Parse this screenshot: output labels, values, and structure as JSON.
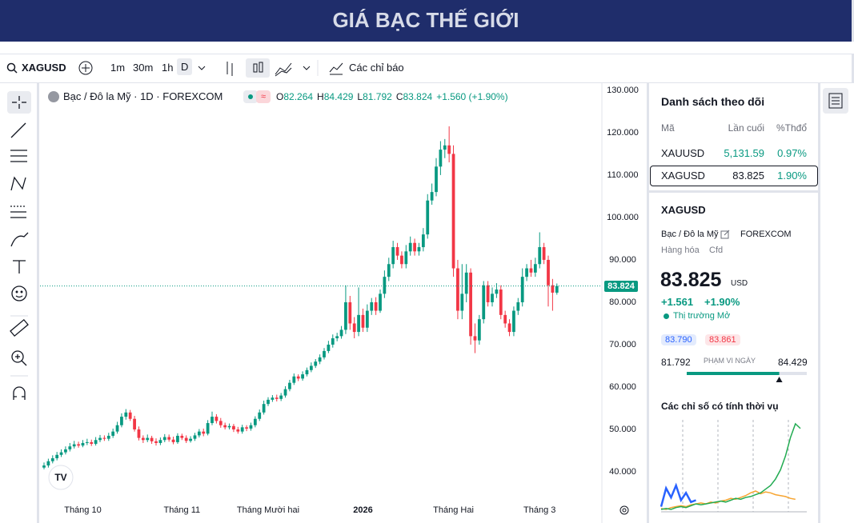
{
  "header": {
    "title": "GIÁ BẠC THẾ GIỚI"
  },
  "toolbar": {
    "symbol": "XAGUSD",
    "intervals": [
      "1m",
      "30m",
      "1h",
      "D"
    ],
    "indicators": "Các chỉ báo"
  },
  "chart_data": {
    "type": "candlestick",
    "legend": {
      "name": "Bạc / Đô la Mỹ · 1D · FOREXCOM",
      "labels": [
        "O",
        "H",
        "L",
        "C"
      ],
      "change": "+1.560 (+1.90%)"
    },
    "categories": [
      null,
      null,
      null,
      null,
      null,
      null,
      null,
      null,
      null,
      "Tháng 10",
      null,
      null,
      null,
      null,
      null,
      null,
      null,
      null,
      null,
      null,
      null,
      null,
      null,
      null,
      null,
      null,
      null,
      null,
      null,
      null,
      null,
      null,
      "Tháng 11",
      null,
      null,
      null,
      null,
      null,
      null,
      null,
      null,
      null,
      null,
      null,
      null,
      null,
      null,
      null,
      null,
      null,
      null,
      null,
      "Tháng Mười hai",
      null,
      null,
      null,
      null,
      null,
      null,
      null,
      null,
      null,
      null,
      null,
      null,
      null,
      null,
      null,
      null,
      null,
      null,
      null,
      null,
      null,
      "2026",
      null,
      null,
      null,
      null,
      null,
      null,
      null,
      null,
      null,
      null,
      null,
      null,
      null,
      null,
      null,
      null,
      null,
      null,
      null,
      null,
      "Tháng Hai",
      null,
      null,
      null,
      null,
      null,
      null,
      null,
      null,
      null,
      null,
      null,
      null,
      null,
      null,
      null,
      null,
      null,
      null,
      null,
      "Tháng 3",
      null,
      null,
      null,
      null
    ],
    "open": [
      41,
      41.5,
      42.5,
      43.2,
      44,
      44.6,
      45.3,
      46,
      46.5,
      46.2,
      46.8,
      47,
      46.6,
      47.5,
      48,
      47.8,
      48.5,
      49.5,
      51,
      53,
      54,
      52.5,
      50,
      48,
      47.5,
      48,
      47.2,
      46.8,
      47.5,
      48.2,
      47.6,
      47,
      48.5,
      48,
      47.3,
      47.8,
      48.6,
      49.5,
      49,
      51.5,
      53,
      52,
      51,
      50.5,
      50.8,
      50,
      49.5,
      50.5,
      50.2,
      51,
      52.5,
      54,
      56,
      57,
      57.5,
      57.2,
      58,
      59.5,
      61,
      62.5,
      62,
      63,
      64,
      65,
      66,
      67,
      68.5,
      70,
      71.5,
      72,
      73.5,
      80,
      75,
      73,
      77,
      74,
      78,
      80,
      78,
      82,
      86,
      89,
      93,
      91,
      89,
      92,
      94,
      92,
      93,
      96,
      104,
      106,
      112,
      116,
      117,
      115,
      88,
      78,
      82,
      87,
      72,
      71,
      76,
      84,
      80,
      82,
      83,
      77,
      75,
      73,
      78,
      80,
      86,
      88,
      87,
      89,
      93,
      90,
      84,
      82.264
    ],
    "high": [
      42.2,
      43.1,
      43.9,
      44.7,
      45.3,
      46,
      46.8,
      47.3,
      47.1,
      47.5,
      47.8,
      47.6,
      48.2,
      48.7,
      48.6,
      49.2,
      50.2,
      51.8,
      53.8,
      54.8,
      54.6,
      53.2,
      50.7,
      48.6,
      48.8,
      48.5,
      47.9,
      48.1,
      48.9,
      48.8,
      48.3,
      49.1,
      49,
      48.6,
      48.4,
      49.2,
      50.1,
      50.2,
      52.2,
      54.2,
      53.6,
      52.7,
      51.6,
      51.4,
      51.3,
      50.6,
      51.1,
      51,
      51.6,
      53.1,
      54.7,
      56.8,
      57.6,
      58.1,
      58.2,
      58.6,
      60.2,
      61.7,
      63.2,
      63,
      63.7,
      64.6,
      65.8,
      66.6,
      67.7,
      69.2,
      70.9,
      72.4,
      72.8,
      74.4,
      84,
      81.5,
      76.5,
      83.5,
      78.5,
      79.5,
      81,
      81.2,
      83,
      87.5,
      90.5,
      94.5,
      94,
      92,
      93.5,
      95.5,
      95,
      94,
      97.5,
      105.5,
      108,
      114,
      118,
      118.5,
      121.5,
      117,
      90,
      89,
      89,
      88,
      75,
      77,
      85,
      85,
      83.5,
      84.5,
      84,
      78,
      76,
      79,
      81,
      88,
      89,
      90,
      90.5,
      96.5,
      94,
      91,
      85.5,
      84.429
    ],
    "low": [
      40.6,
      41,
      42,
      42.7,
      43.5,
      44.1,
      44.8,
      45.5,
      45.7,
      45.8,
      46.3,
      46.1,
      46.2,
      47,
      47.3,
      47.3,
      48,
      49,
      50.5,
      52.3,
      52,
      49.5,
      47.4,
      46.8,
      47,
      46.6,
      46.2,
      46.3,
      47,
      47.1,
      46.5,
      46.6,
      47.5,
      46.8,
      46.9,
      47.3,
      48.1,
      48.4,
      48.6,
      51,
      51.4,
      50.4,
      50,
      50,
      49.4,
      49,
      49,
      49.6,
      49.7,
      50.5,
      52,
      53.5,
      55.5,
      56.5,
      56.6,
      56.7,
      57.5,
      59,
      60.5,
      61.4,
      61.5,
      62.5,
      63.5,
      64.5,
      65.4,
      66.5,
      68,
      69.3,
      70.8,
      71.4,
      72.5,
      73.5,
      71.5,
      72,
      73,
      73,
      77,
      77,
      77.5,
      81,
      85,
      88,
      90,
      88,
      88,
      91,
      91,
      91,
      92,
      95,
      103,
      105,
      110,
      114,
      113,
      86,
      76,
      76,
      80,
      70,
      68,
      70,
      75,
      79,
      79,
      81,
      76,
      74,
      72,
      72,
      77,
      79,
      85,
      86,
      86,
      88,
      89,
      79,
      78,
      81.792
    ],
    "close": [
      41.5,
      42.5,
      43.2,
      44,
      44.6,
      45.3,
      46,
      46.5,
      46.2,
      46.8,
      47,
      46.6,
      47.5,
      48,
      47.8,
      48.5,
      49.5,
      51,
      53,
      54,
      52.5,
      50,
      48,
      47.5,
      48,
      47.2,
      46.8,
      47.5,
      48.2,
      47.6,
      47,
      48.5,
      48,
      47.3,
      47.8,
      48.6,
      49.5,
      49,
      51.5,
      53,
      52,
      51,
      50.5,
      50.8,
      50,
      49.5,
      50.5,
      50.2,
      51,
      52.5,
      54,
      56,
      57,
      57.5,
      57.2,
      58,
      59.5,
      61,
      62.5,
      62,
      63,
      64,
      65,
      66,
      67,
      68.5,
      70,
      71.5,
      72,
      73.5,
      80,
      75,
      73,
      77,
      74,
      78,
      80,
      78,
      82,
      86,
      89,
      93,
      91,
      89,
      92,
      94,
      92,
      93,
      96,
      104,
      106,
      112,
      116,
      117,
      115,
      88,
      78,
      82,
      87,
      72,
      71,
      76,
      84,
      80,
      82,
      83,
      77,
      75,
      73,
      78,
      80,
      86,
      88,
      87,
      89,
      93,
      90,
      84,
      82.264,
      83.824
    ],
    "up_color": "#089981",
    "down_color": "#f23645",
    "ylim": [
      33.4,
      131.3
    ],
    "yticks": [
      {
        "value": 40,
        "label": "40.000"
      },
      {
        "value": 50,
        "label": "50.000"
      },
      {
        "value": 60,
        "label": "60.000"
      },
      {
        "value": 70,
        "label": "70.000"
      },
      {
        "value": 80,
        "label": "80.000"
      },
      {
        "value": 90,
        "label": "90.000"
      },
      {
        "value": 100,
        "label": "100.000"
      },
      {
        "value": 110,
        "label": "110.000"
      },
      {
        "value": 120,
        "label": "120.000"
      },
      {
        "value": 130,
        "label": "130.000"
      }
    ],
    "grid": false
  },
  "watchlist": {
    "title": "Danh sách theo dõi",
    "columns": [
      "Mã",
      "Lần cuối",
      "%Thđổ"
    ],
    "rows": [
      [
        "XAUUSD",
        "5,131.59",
        "0.97%"
      ],
      [
        "XAGUSD",
        "83.825",
        "1.90%"
      ]
    ]
  },
  "details": {
    "symbol": "XAGUSD",
    "name": "Bạc / Đô la Mỹ",
    "exchange": "FOREXCOM",
    "category": "Hàng hóa",
    "kind": "Cfd",
    "price": "83.825",
    "currency": "USD",
    "change": "+1.561",
    "change_pct": "+1.90%",
    "status": "Thị trường Mở",
    "bid": "83.790",
    "ask": "83.861",
    "range_low": "81.792",
    "range_label": "PHẠM VI NGÀY",
    "range_high": "84.429"
  },
  "seasonals": {
    "title": "Các chỉ số có tính thời vụ",
    "series": [
      {
        "color": "#f7a531",
        "values": [
          3,
          2,
          4,
          5,
          6,
          5,
          7,
          8,
          9,
          8,
          10,
          9,
          11,
          12,
          14,
          13,
          15,
          17,
          20,
          22,
          19,
          21,
          20,
          18,
          17,
          16,
          14,
          13
        ]
      },
      {
        "color": "#22ab52",
        "values": [
          2,
          3,
          2,
          4,
          5,
          4,
          6,
          8,
          7,
          8,
          9,
          10,
          11,
          10,
          12,
          14,
          13,
          15,
          16,
          18,
          20,
          24,
          28,
          35,
          45,
          60,
          80,
          95,
          90
        ]
      },
      {
        "color": "#2962ff",
        "values": [
          5,
          25,
          15,
          28,
          12,
          20,
          10,
          12
        ]
      }
    ]
  }
}
